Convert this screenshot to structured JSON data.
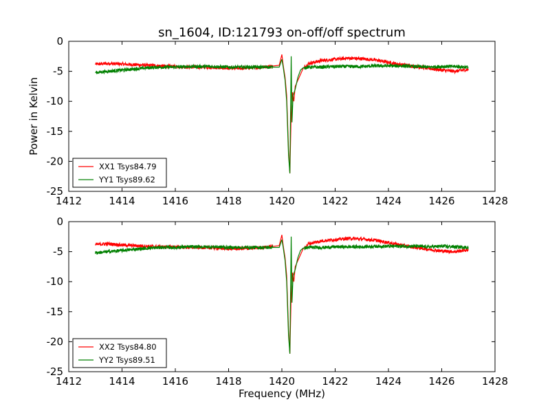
{
  "title": "sn_1604, ID:121793 on-off/off spectrum",
  "chart_data": [
    {
      "type": "line",
      "title": "sn_1604, ID:121793 on-off/off spectrum",
      "xlabel": "",
      "ylabel": "Power in Kelvin",
      "xlim": [
        1412,
        1428
      ],
      "ylim": [
        -25,
        0
      ],
      "xticks": [
        "1412",
        "1414",
        "1416",
        "1418",
        "1420",
        "1422",
        "1424",
        "1426",
        "1428"
      ],
      "yticks": [
        "0",
        "-5",
        "-10",
        "-15",
        "-20",
        "-25"
      ],
      "grid": false,
      "legend": "lower-left",
      "series": [
        {
          "name": "XX1 Tsys84.79",
          "color": "#ff0000",
          "points": [
            [
              1413.0,
              -3.8
            ],
            [
              1413.5,
              -3.7
            ],
            [
              1414.0,
              -3.8
            ],
            [
              1414.5,
              -3.9
            ],
            [
              1415.0,
              -4.0
            ],
            [
              1415.5,
              -4.1
            ],
            [
              1416.0,
              -4.2
            ],
            [
              1416.5,
              -4.3
            ],
            [
              1417.0,
              -4.3
            ],
            [
              1417.5,
              -4.4
            ],
            [
              1418.0,
              -4.5
            ],
            [
              1418.5,
              -4.5
            ],
            [
              1419.0,
              -4.4
            ],
            [
              1419.5,
              -4.2
            ],
            [
              1419.9,
              -4.0
            ],
            [
              1420.0,
              -2.2
            ],
            [
              1420.05,
              -4.0
            ],
            [
              1420.12,
              -6.0
            ],
            [
              1420.18,
              -9.0
            ],
            [
              1420.25,
              -18.0
            ],
            [
              1420.3,
              -22.0
            ],
            [
              1420.35,
              -12.0
            ],
            [
              1420.4,
              -8.5
            ],
            [
              1420.45,
              -10.0
            ],
            [
              1420.5,
              -7.5
            ],
            [
              1420.6,
              -6.5
            ],
            [
              1420.7,
              -5.5
            ],
            [
              1420.8,
              -4.5
            ],
            [
              1421.0,
              -3.7
            ],
            [
              1421.5,
              -3.2
            ],
            [
              1422.0,
              -3.0
            ],
            [
              1422.5,
              -2.8
            ],
            [
              1423.0,
              -2.9
            ],
            [
              1423.5,
              -3.1
            ],
            [
              1424.0,
              -3.5
            ],
            [
              1424.5,
              -3.9
            ],
            [
              1425.0,
              -4.2
            ],
            [
              1425.5,
              -4.5
            ],
            [
              1426.0,
              -4.8
            ],
            [
              1426.5,
              -5.0
            ],
            [
              1427.0,
              -4.7
            ]
          ]
        },
        {
          "name": "YY1 Tsys89.62",
          "color": "#008000",
          "points": [
            [
              1413.0,
              -5.2
            ],
            [
              1413.5,
              -5.0
            ],
            [
              1414.0,
              -4.8
            ],
            [
              1414.5,
              -4.6
            ],
            [
              1415.0,
              -4.4
            ],
            [
              1415.5,
              -4.3
            ],
            [
              1416.0,
              -4.3
            ],
            [
              1416.5,
              -4.2
            ],
            [
              1417.0,
              -4.2
            ],
            [
              1417.5,
              -4.2
            ],
            [
              1418.0,
              -4.3
            ],
            [
              1418.5,
              -4.3
            ],
            [
              1419.0,
              -4.3
            ],
            [
              1419.5,
              -4.3
            ],
            [
              1419.9,
              -4.3
            ],
            [
              1420.0,
              -3.0
            ],
            [
              1420.05,
              -4.3
            ],
            [
              1420.12,
              -6.5
            ],
            [
              1420.18,
              -10.0
            ],
            [
              1420.25,
              -19.0
            ],
            [
              1420.3,
              -22.0
            ],
            [
              1420.35,
              -2.5
            ],
            [
              1420.38,
              -13.5
            ],
            [
              1420.42,
              -9.0
            ],
            [
              1420.5,
              -8.0
            ],
            [
              1420.6,
              -6.0
            ],
            [
              1420.7,
              -4.8
            ],
            [
              1420.8,
              -4.4
            ],
            [
              1421.0,
              -4.3
            ],
            [
              1421.5,
              -4.3
            ],
            [
              1422.0,
              -4.2
            ],
            [
              1422.5,
              -4.2
            ],
            [
              1423.0,
              -4.2
            ],
            [
              1423.5,
              -4.1
            ],
            [
              1424.0,
              -4.1
            ],
            [
              1424.5,
              -4.1
            ],
            [
              1425.0,
              -4.2
            ],
            [
              1425.5,
              -4.3
            ],
            [
              1426.0,
              -4.2
            ],
            [
              1426.5,
              -4.2
            ],
            [
              1427.0,
              -4.3
            ]
          ]
        }
      ]
    },
    {
      "type": "line",
      "title": "",
      "xlabel": "Frequency (MHz)",
      "ylabel": "",
      "xlim": [
        1412,
        1428
      ],
      "ylim": [
        -25,
        0
      ],
      "xticks": [
        "1412",
        "1414",
        "1416",
        "1418",
        "1420",
        "1422",
        "1424",
        "1426",
        "1428"
      ],
      "yticks": [
        "0",
        "-5",
        "-10",
        "-15",
        "-20",
        "-25"
      ],
      "grid": false,
      "legend": "lower-left",
      "series": [
        {
          "name": "XX2 Tsys84.80",
          "color": "#ff0000",
          "points": [
            [
              1413.0,
              -3.8
            ],
            [
              1413.5,
              -3.7
            ],
            [
              1414.0,
              -3.9
            ],
            [
              1414.5,
              -4.0
            ],
            [
              1415.0,
              -4.1
            ],
            [
              1415.5,
              -4.2
            ],
            [
              1416.0,
              -4.2
            ],
            [
              1416.5,
              -4.3
            ],
            [
              1417.0,
              -4.3
            ],
            [
              1417.5,
              -4.4
            ],
            [
              1418.0,
              -4.5
            ],
            [
              1418.5,
              -4.5
            ],
            [
              1419.0,
              -4.4
            ],
            [
              1419.5,
              -4.2
            ],
            [
              1419.9,
              -4.0
            ],
            [
              1420.0,
              -2.2
            ],
            [
              1420.05,
              -4.0
            ],
            [
              1420.12,
              -6.0
            ],
            [
              1420.18,
              -9.0
            ],
            [
              1420.25,
              -18.0
            ],
            [
              1420.3,
              -22.0
            ],
            [
              1420.35,
              -12.0
            ],
            [
              1420.4,
              -8.5
            ],
            [
              1420.45,
              -10.0
            ],
            [
              1420.5,
              -7.5
            ],
            [
              1420.6,
              -6.5
            ],
            [
              1420.7,
              -5.5
            ],
            [
              1420.8,
              -4.5
            ],
            [
              1421.0,
              -3.7
            ],
            [
              1421.5,
              -3.2
            ],
            [
              1422.0,
              -3.0
            ],
            [
              1422.5,
              -2.8
            ],
            [
              1423.0,
              -2.9
            ],
            [
              1423.5,
              -3.1
            ],
            [
              1424.0,
              -3.5
            ],
            [
              1424.5,
              -3.9
            ],
            [
              1425.0,
              -4.3
            ],
            [
              1425.5,
              -4.6
            ],
            [
              1426.0,
              -4.9
            ],
            [
              1426.5,
              -5.0
            ],
            [
              1427.0,
              -4.7
            ]
          ]
        },
        {
          "name": "YY2 Tsys89.51",
          "color": "#008000",
          "points": [
            [
              1413.0,
              -5.2
            ],
            [
              1413.5,
              -5.0
            ],
            [
              1414.0,
              -4.8
            ],
            [
              1414.5,
              -4.6
            ],
            [
              1415.0,
              -4.4
            ],
            [
              1415.5,
              -4.3
            ],
            [
              1416.0,
              -4.3
            ],
            [
              1416.5,
              -4.2
            ],
            [
              1417.0,
              -4.2
            ],
            [
              1417.5,
              -4.2
            ],
            [
              1418.0,
              -4.3
            ],
            [
              1418.5,
              -4.3
            ],
            [
              1419.0,
              -4.3
            ],
            [
              1419.5,
              -4.3
            ],
            [
              1419.9,
              -4.3
            ],
            [
              1420.0,
              -3.0
            ],
            [
              1420.05,
              -4.3
            ],
            [
              1420.12,
              -6.5
            ],
            [
              1420.18,
              -10.0
            ],
            [
              1420.25,
              -19.0
            ],
            [
              1420.3,
              -22.0
            ],
            [
              1420.35,
              -2.5
            ],
            [
              1420.38,
              -13.5
            ],
            [
              1420.42,
              -9.0
            ],
            [
              1420.5,
              -8.0
            ],
            [
              1420.6,
              -6.0
            ],
            [
              1420.7,
              -4.8
            ],
            [
              1420.8,
              -4.4
            ],
            [
              1421.0,
              -4.3
            ],
            [
              1421.5,
              -4.3
            ],
            [
              1422.0,
              -4.2
            ],
            [
              1422.5,
              -4.2
            ],
            [
              1423.0,
              -4.2
            ],
            [
              1423.5,
              -4.1
            ],
            [
              1424.0,
              -4.1
            ],
            [
              1424.5,
              -4.1
            ],
            [
              1425.0,
              -4.1
            ],
            [
              1425.5,
              -4.2
            ],
            [
              1426.0,
              -4.1
            ],
            [
              1426.5,
              -4.2
            ],
            [
              1427.0,
              -4.3
            ]
          ]
        }
      ]
    }
  ]
}
